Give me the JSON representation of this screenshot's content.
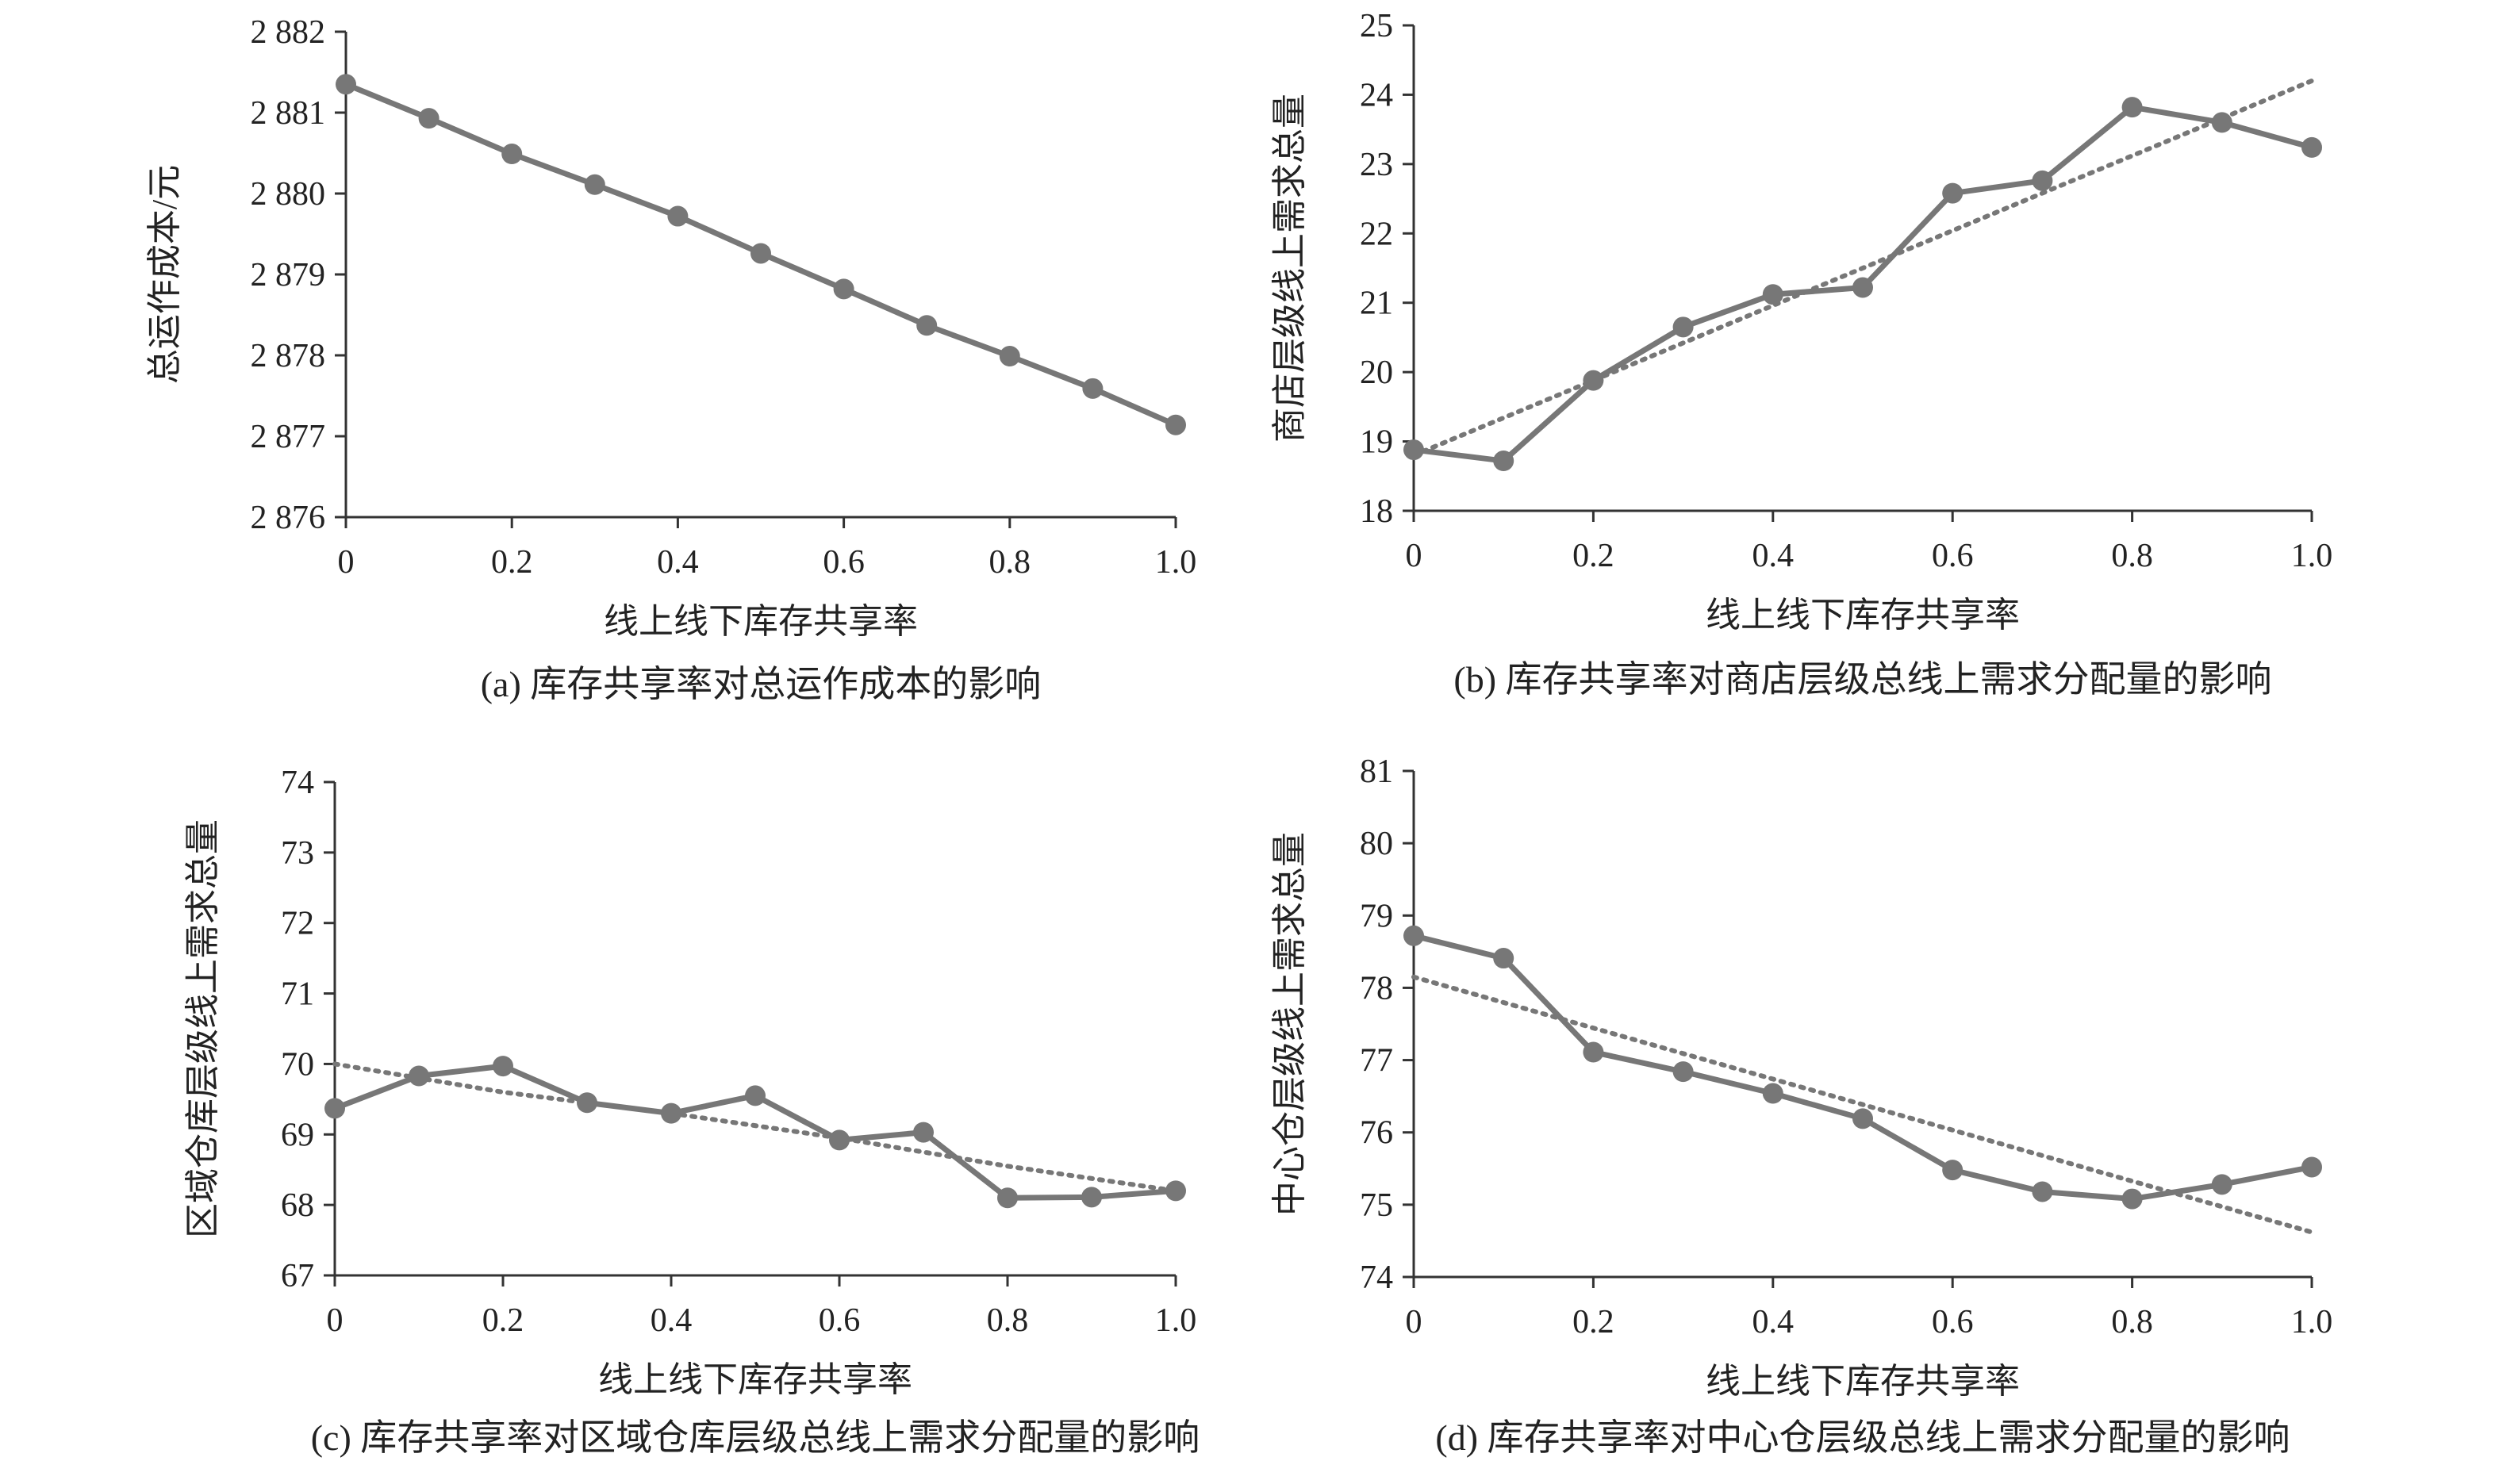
{
  "chart_data": [
    {
      "id": "a",
      "type": "line",
      "caption": "(a) 库存共享率对总运作成本的影响",
      "xlabel": "线上线下库存共享率",
      "ylabel": "总运作成本/元",
      "xlim": [
        0,
        1.0
      ],
      "ylim": [
        2876,
        2882
      ],
      "x_ticks": [
        "0",
        "0.2",
        "0.4",
        "0.6",
        "0.8",
        "1.0"
      ],
      "y_ticks": [
        "2 876",
        "2 877",
        "2 878",
        "2 879",
        "2 880",
        "2 881",
        "2 882"
      ],
      "x": [
        0,
        0.1,
        0.2,
        0.3,
        0.4,
        0.5,
        0.6,
        0.7,
        0.8,
        0.9,
        1.0
      ],
      "series": [
        {
          "values": [
            2881.35,
            2880.93,
            2880.49,
            2880.11,
            2879.72,
            2879.26,
            2878.82,
            2878.37,
            2877.99,
            2877.59,
            2877.14
          ]
        }
      ],
      "trendline": null,
      "grid": false,
      "legend": "none"
    },
    {
      "id": "b",
      "type": "line",
      "caption": "(b) 库存共享率对商店层级总线上需求分配量的影响",
      "xlabel": "线上线下库存共享率",
      "ylabel": "商店层级线上需求总量",
      "xlim": [
        0,
        1.0
      ],
      "ylim": [
        18,
        25
      ],
      "x_ticks": [
        "0",
        "0.2",
        "0.4",
        "0.6",
        "0.8",
        "1.0"
      ],
      "y_ticks": [
        "18",
        "19",
        "20",
        "21",
        "22",
        "23",
        "24",
        "25"
      ],
      "x": [
        0,
        0.1,
        0.2,
        0.3,
        0.4,
        0.5,
        0.6,
        0.7,
        0.8,
        0.9,
        1.0
      ],
      "series": [
        {
          "values": [
            18.88,
            18.72,
            19.88,
            20.65,
            21.12,
            21.22,
            22.58,
            22.76,
            23.82,
            23.6,
            23.24
          ]
        }
      ],
      "trendline": {
        "type": "linear",
        "start": 18.8,
        "end": 24.2
      },
      "grid": false,
      "legend": "none"
    },
    {
      "id": "c",
      "type": "line",
      "caption": "(c) 库存共享率对区域仓库层级总线上需求分配量的影响",
      "xlabel": "线上线下库存共享率",
      "ylabel": "区域仓库层级线上需求总量",
      "xlim": [
        0,
        1.0
      ],
      "ylim": [
        67,
        74
      ],
      "x_ticks": [
        "0",
        "0.2",
        "0.4",
        "0.6",
        "0.8",
        "1.0"
      ],
      "y_ticks": [
        "67",
        "68",
        "69",
        "70",
        "71",
        "72",
        "73",
        "74"
      ],
      "x": [
        0,
        0.1,
        0.2,
        0.3,
        0.4,
        0.5,
        0.6,
        0.7,
        0.8,
        0.9,
        1.0
      ],
      "series": [
        {
          "values": [
            69.37,
            69.83,
            69.97,
            69.45,
            69.3,
            69.55,
            68.92,
            69.03,
            68.1,
            68.11,
            68.2
          ]
        }
      ],
      "trendline": {
        "type": "polynomial",
        "start": 70.0,
        "end": 68.2,
        "x_points": [
          0,
          0.2,
          0.4,
          0.6,
          0.8,
          1.0
        ],
        "values": [
          70.0,
          69.6,
          69.3,
          68.95,
          68.55,
          68.2
        ]
      },
      "grid": false,
      "legend": "none"
    },
    {
      "id": "d",
      "type": "line",
      "caption": "(d) 库存共享率对中心仓层级总线上需求分配量的影响",
      "xlabel": "线上线下库存共享率",
      "ylabel": "中心仓层级线上需求总量",
      "xlim": [
        0,
        1.0
      ],
      "ylim": [
        74,
        81
      ],
      "x_ticks": [
        "0",
        "0.2",
        "0.4",
        "0.6",
        "0.8",
        "1.0"
      ],
      "y_ticks": [
        "74",
        "75",
        "76",
        "77",
        "78",
        "79",
        "80",
        "81"
      ],
      "x": [
        0,
        0.1,
        0.2,
        0.3,
        0.4,
        0.5,
        0.6,
        0.7,
        0.8,
        0.9,
        1.0
      ],
      "series": [
        {
          "values": [
            78.72,
            78.41,
            77.11,
            76.84,
            76.54,
            76.19,
            75.48,
            75.18,
            75.08,
            75.28,
            75.52
          ]
        }
      ],
      "trendline": {
        "type": "linear",
        "start": 78.15,
        "end": 74.62
      },
      "grid": false,
      "legend": "none"
    }
  ]
}
